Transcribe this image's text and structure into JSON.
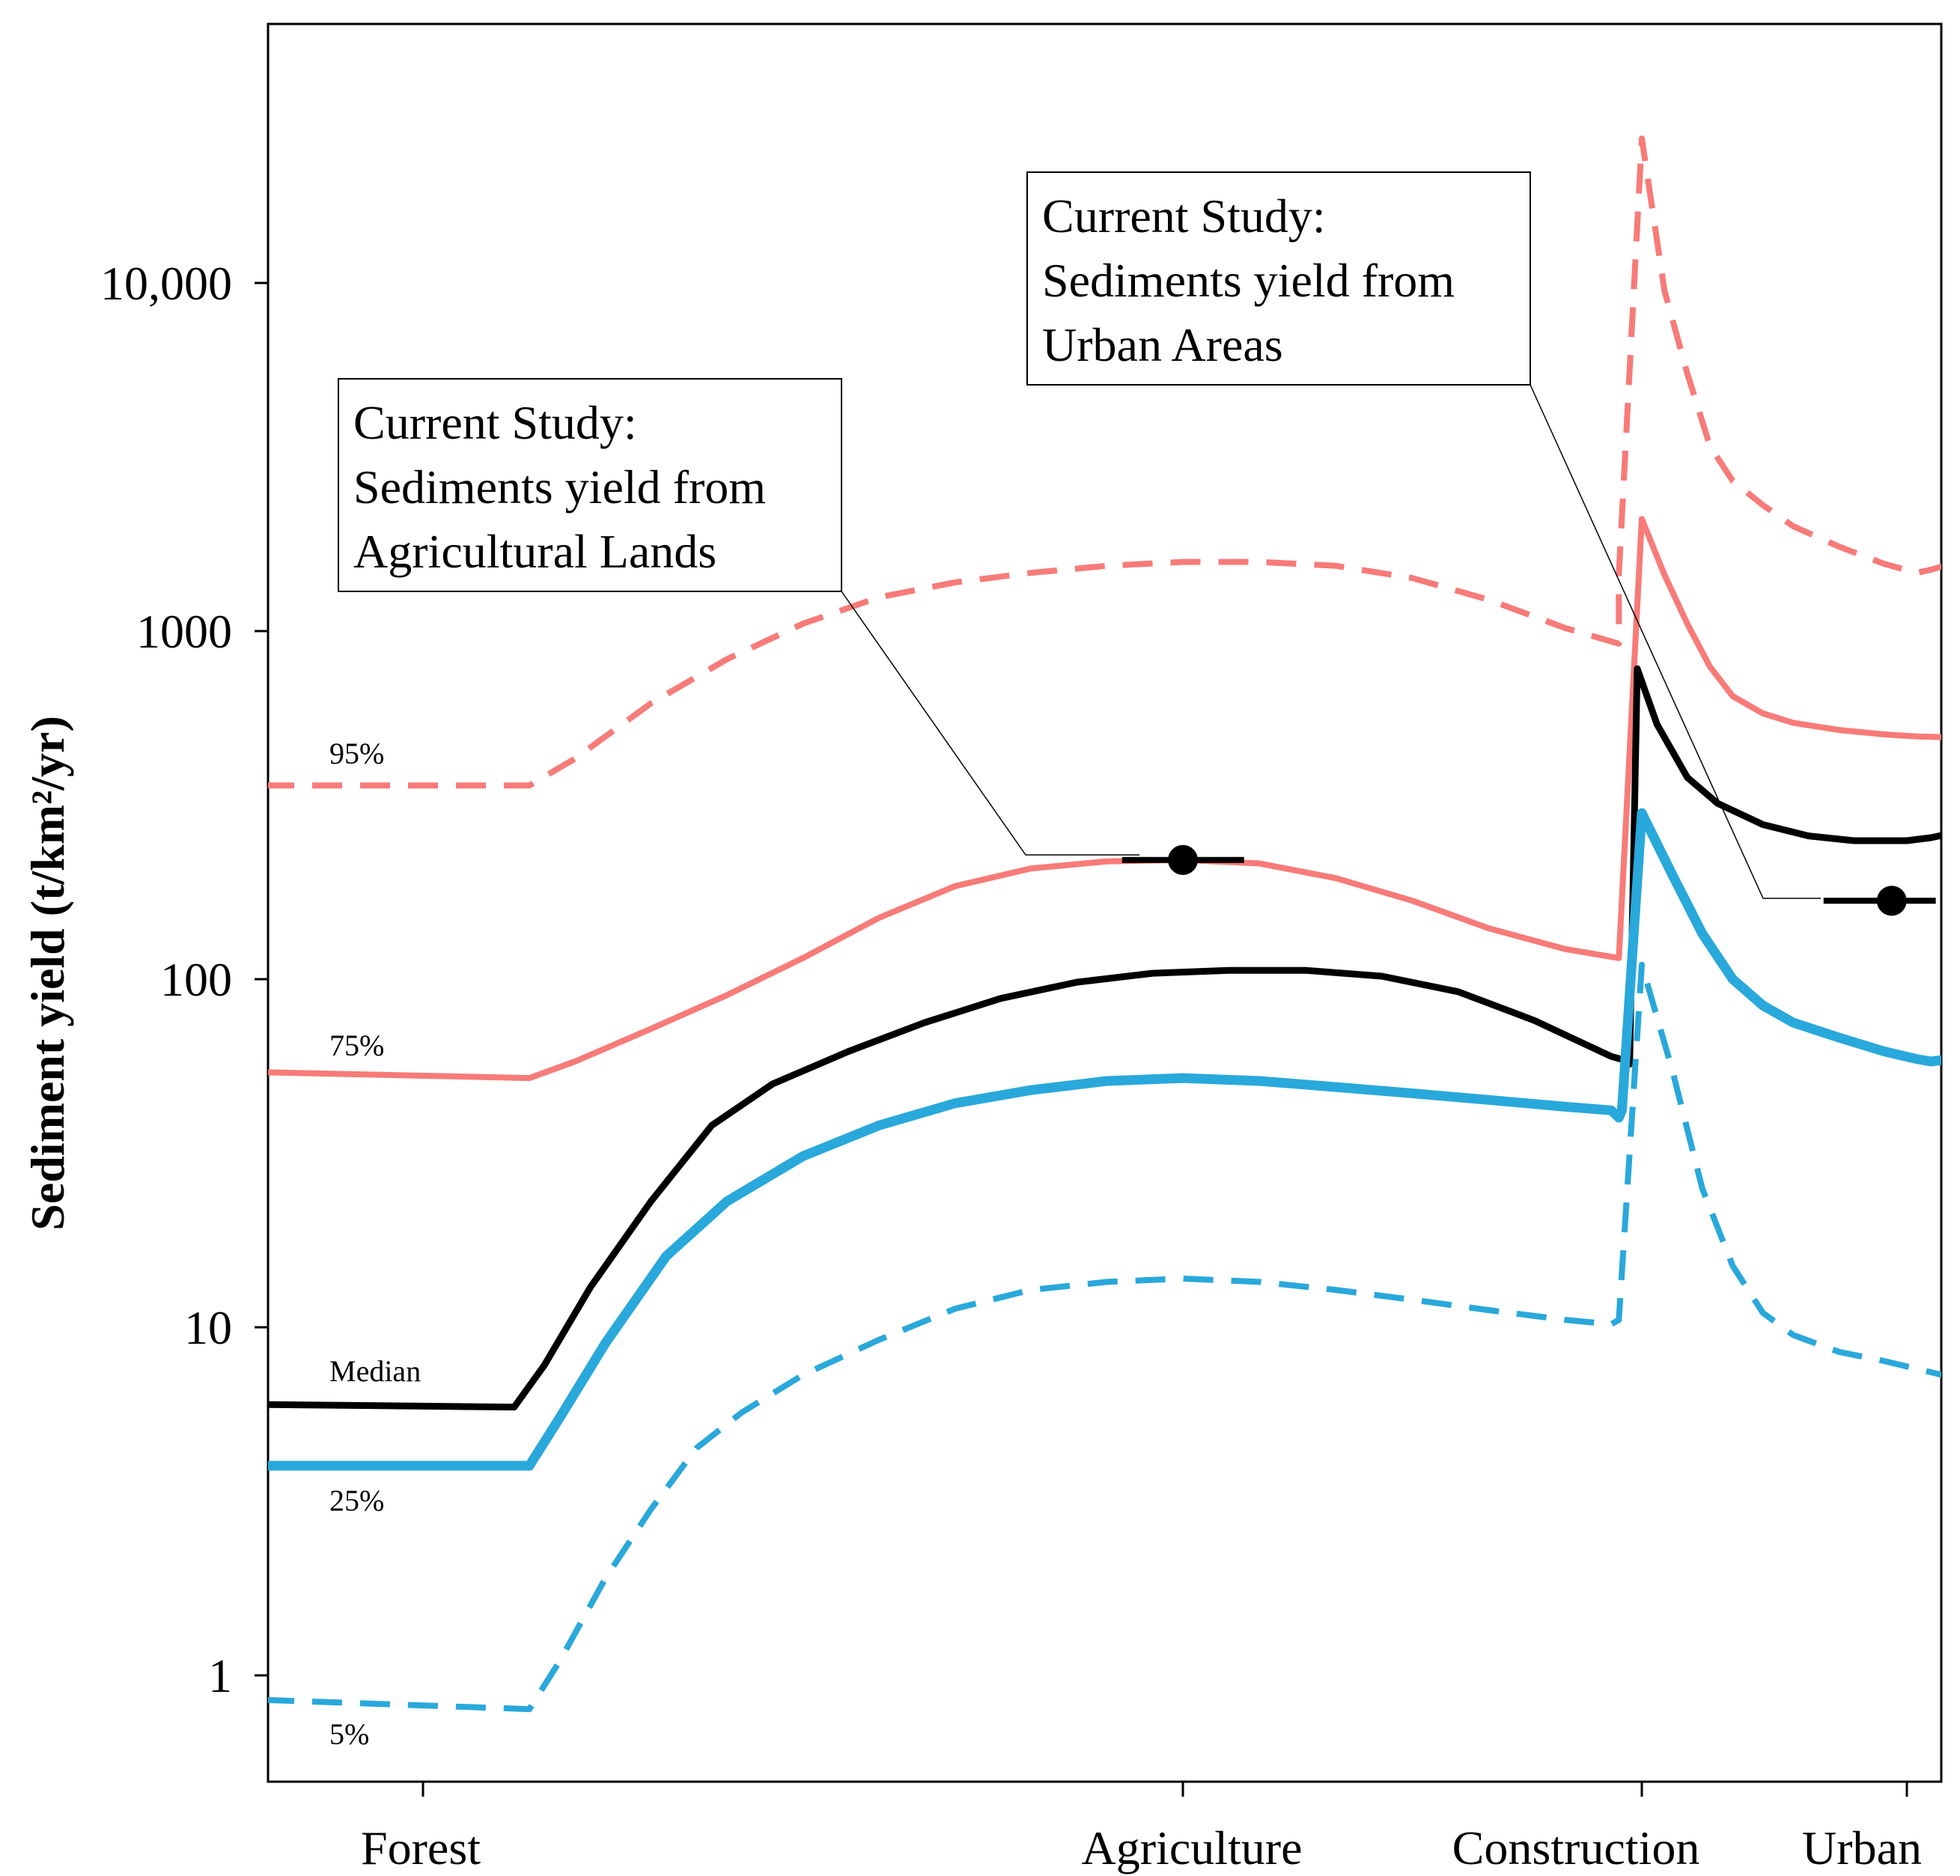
{
  "chart_data": {
    "type": "line",
    "title": "",
    "ylabel": "Sediment yield (t/km²/yr)",
    "yscale": "log",
    "ylim": [
      0.5,
      50000
    ],
    "yticks": [
      {
        "value": 1,
        "label": "1"
      },
      {
        "value": 10,
        "label": "10"
      },
      {
        "value": 100,
        "label": "100"
      },
      {
        "value": 1000,
        "label": "1000"
      },
      {
        "value": 10000,
        "label": "10,000"
      }
    ],
    "xlim": [
      -0.6,
      10.2
    ],
    "categories": [
      {
        "name": "Forest",
        "x": 0
      },
      {
        "name": "Agriculture",
        "x": 5
      },
      {
        "name": "Construction",
        "x": 8
      },
      {
        "name": "Urban",
        "x": 9.75
      }
    ],
    "series": [
      {
        "name": "95%",
        "label": "95%",
        "color": "#f77b78",
        "dash": "dashed",
        "width": 8,
        "points": [
          [
            -0.6,
            360
          ],
          [
            0.7,
            360
          ],
          [
            1.0,
            430
          ],
          [
            1.5,
            620
          ],
          [
            2.0,
            830
          ],
          [
            2.5,
            1050
          ],
          [
            3.0,
            1250
          ],
          [
            3.5,
            1380
          ],
          [
            4.0,
            1470
          ],
          [
            4.5,
            1540
          ],
          [
            5.0,
            1580
          ],
          [
            5.5,
            1580
          ],
          [
            6.0,
            1540
          ],
          [
            6.5,
            1420
          ],
          [
            7.0,
            1230
          ],
          [
            7.5,
            1020
          ],
          [
            7.85,
            920
          ],
          [
            7.85,
            1450
          ],
          [
            8.0,
            26000
          ],
          [
            8.15,
            9500
          ],
          [
            8.3,
            5500
          ],
          [
            8.45,
            3400
          ],
          [
            8.6,
            2700
          ],
          [
            8.8,
            2300
          ],
          [
            9.0,
            2000
          ],
          [
            9.3,
            1750
          ],
          [
            9.6,
            1560
          ],
          [
            9.85,
            1470
          ],
          [
            10.0,
            1500
          ],
          [
            10.2,
            1560
          ]
        ]
      },
      {
        "name": "75%",
        "label": "75%",
        "color": "#f77b78",
        "dash": "solid",
        "width": 8,
        "points": [
          [
            -0.6,
            54
          ],
          [
            0.7,
            52
          ],
          [
            1.0,
            58
          ],
          [
            1.5,
            72
          ],
          [
            2.0,
            90
          ],
          [
            2.5,
            115
          ],
          [
            3.0,
            150
          ],
          [
            3.5,
            185
          ],
          [
            4.0,
            208
          ],
          [
            4.5,
            218
          ],
          [
            5.0,
            220
          ],
          [
            5.5,
            215
          ],
          [
            6.0,
            195
          ],
          [
            6.5,
            168
          ],
          [
            7.0,
            140
          ],
          [
            7.5,
            122
          ],
          [
            7.85,
            115
          ],
          [
            8.0,
            2100
          ],
          [
            8.15,
            1450
          ],
          [
            8.3,
            1050
          ],
          [
            8.45,
            790
          ],
          [
            8.6,
            650
          ],
          [
            8.8,
            580
          ],
          [
            9.0,
            545
          ],
          [
            9.3,
            520
          ],
          [
            9.6,
            505
          ],
          [
            9.85,
            498
          ],
          [
            10.2,
            495
          ]
        ]
      },
      {
        "name": "Median",
        "label": "Median",
        "color": "#000000",
        "dash": "solid",
        "width": 9,
        "points": [
          [
            -0.6,
            6.0
          ],
          [
            0.6,
            5.9
          ],
          [
            0.8,
            7.8
          ],
          [
            1.1,
            13
          ],
          [
            1.5,
            23
          ],
          [
            1.9,
            38
          ],
          [
            2.3,
            50
          ],
          [
            2.8,
            62
          ],
          [
            3.3,
            75
          ],
          [
            3.8,
            88
          ],
          [
            4.3,
            98
          ],
          [
            4.8,
            104
          ],
          [
            5.3,
            106
          ],
          [
            5.8,
            106
          ],
          [
            6.3,
            102
          ],
          [
            6.8,
            92
          ],
          [
            7.3,
            76
          ],
          [
            7.8,
            60
          ],
          [
            7.92,
            58
          ],
          [
            7.92,
            57
          ],
          [
            7.97,
            780
          ],
          [
            8.1,
            540
          ],
          [
            8.3,
            380
          ],
          [
            8.5,
            320
          ],
          [
            8.8,
            278
          ],
          [
            9.1,
            258
          ],
          [
            9.4,
            250
          ],
          [
            9.75,
            250
          ],
          [
            10.0,
            255
          ],
          [
            10.2,
            262
          ]
        ]
      },
      {
        "name": "25%",
        "label": "25%",
        "color": "#29a8db",
        "dash": "solid",
        "width": 13,
        "points": [
          [
            -0.6,
            4.0
          ],
          [
            0.7,
            4.0
          ],
          [
            0.9,
            5.5
          ],
          [
            1.2,
            9
          ],
          [
            1.6,
            16
          ],
          [
            2.0,
            23
          ],
          [
            2.5,
            31
          ],
          [
            3.0,
            38
          ],
          [
            3.5,
            44
          ],
          [
            4.0,
            48
          ],
          [
            4.5,
            51
          ],
          [
            5.0,
            52
          ],
          [
            5.5,
            51
          ],
          [
            6.0,
            49
          ],
          [
            6.5,
            47
          ],
          [
            7.0,
            45
          ],
          [
            7.5,
            43
          ],
          [
            7.8,
            42
          ],
          [
            7.85,
            40
          ],
          [
            7.87,
            42
          ],
          [
            8.0,
            300
          ],
          [
            8.2,
            200
          ],
          [
            8.4,
            135
          ],
          [
            8.6,
            100
          ],
          [
            8.8,
            84
          ],
          [
            9.0,
            75
          ],
          [
            9.3,
            68
          ],
          [
            9.6,
            62
          ],
          [
            9.85,
            59
          ],
          [
            10.0,
            58
          ],
          [
            10.2,
            59
          ]
        ]
      },
      {
        "name": "5%",
        "label": "5%",
        "color": "#29a8db",
        "dash": "dashed",
        "width": 8,
        "points": [
          [
            -0.6,
            0.85
          ],
          [
            0.7,
            0.8
          ],
          [
            0.9,
            1.1
          ],
          [
            1.2,
            1.9
          ],
          [
            1.5,
            3.0
          ],
          [
            1.8,
            4.5
          ],
          [
            2.1,
            5.7
          ],
          [
            2.5,
            7.3
          ],
          [
            3.0,
            9.2
          ],
          [
            3.5,
            11.3
          ],
          [
            4.0,
            12.8
          ],
          [
            4.5,
            13.5
          ],
          [
            5.0,
            13.8
          ],
          [
            5.5,
            13.5
          ],
          [
            6.0,
            12.8
          ],
          [
            6.5,
            12.0
          ],
          [
            7.0,
            11.2
          ],
          [
            7.5,
            10.5
          ],
          [
            7.8,
            10.2
          ],
          [
            7.85,
            10.5
          ],
          [
            8.0,
            110
          ],
          [
            8.2,
            55
          ],
          [
            8.4,
            25
          ],
          [
            8.6,
            15
          ],
          [
            8.8,
            11
          ],
          [
            9.0,
            9.5
          ],
          [
            9.3,
            8.5
          ],
          [
            9.6,
            8.0
          ],
          [
            9.85,
            7.6
          ],
          [
            10.2,
            7.2
          ]
        ]
      }
    ],
    "observations": [
      {
        "name": "Agriculture (current study)",
        "x": 5.0,
        "y": 220,
        "xerr": [
          4.6,
          5.4
        ]
      },
      {
        "name": "Urban (current study)",
        "x": 9.65,
        "y": 168,
        "xerr": [
          9.2,
          10.05
        ]
      }
    ],
    "annotations": [
      {
        "lines": [
          "Current Study:",
          "Sediments yield from",
          "Agricultural Lands"
        ],
        "target": "Agriculture (current study)"
      },
      {
        "lines": [
          "Current Study:",
          "Sediments yield from",
          "Urban Areas"
        ],
        "target": "Urban (current study)"
      }
    ]
  }
}
